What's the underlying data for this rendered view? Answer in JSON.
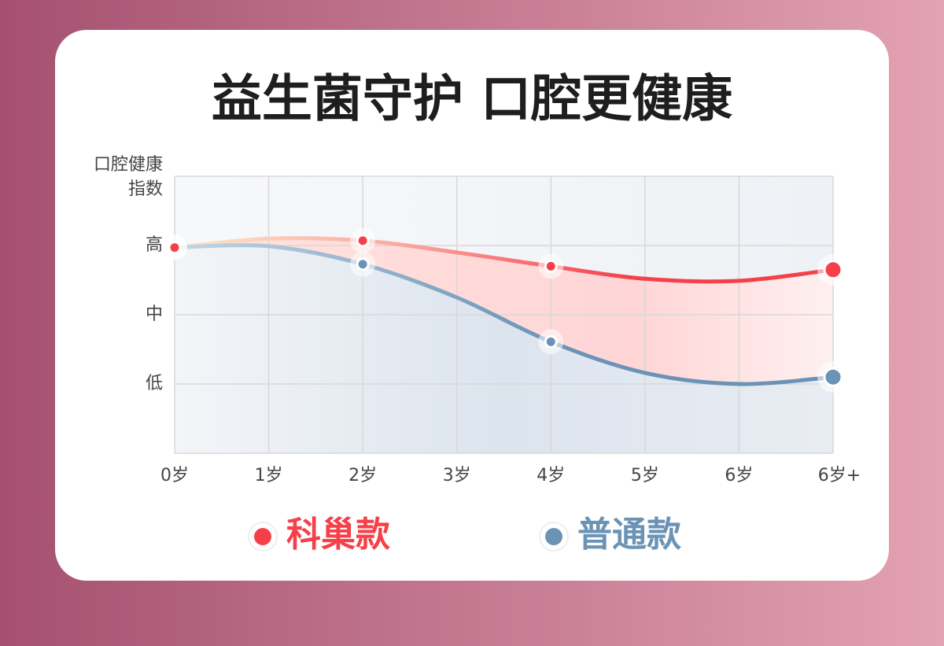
{
  "chart_data": {
    "type": "line",
    "title": "益生菌守护 口腔更健康",
    "ylabel": [
      "口腔健康",
      "指数"
    ],
    "categories": [
      "0岁",
      "1岁",
      "2岁",
      "3岁",
      "4岁",
      "5岁",
      "6岁",
      "6岁+"
    ],
    "series": [
      {
        "name": "科巢款",
        "color": "#f5404a",
        "values": [
          2.97,
          3.1,
          3.07,
          2.9,
          2.7,
          2.52,
          2.49,
          2.65
        ]
      },
      {
        "name": "普通款",
        "color": "#6a93b5",
        "values": [
          2.97,
          2.99,
          2.73,
          2.25,
          1.61,
          1.16,
          1.0,
          1.1
        ]
      }
    ],
    "markers_at": [
      0,
      2,
      4,
      7
    ],
    "ylim": [
      0,
      4
    ],
    "yticks": [
      {
        "value": 1,
        "label": "低"
      },
      {
        "value": 2,
        "label": "中"
      },
      {
        "value": 3,
        "label": "高"
      }
    ],
    "grid": true
  }
}
